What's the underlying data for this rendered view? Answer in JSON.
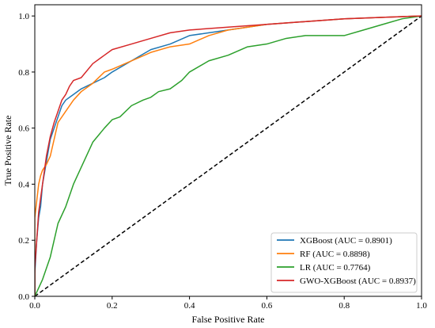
{
  "chart_data": {
    "type": "line",
    "title": "",
    "xlabel": "False Positive Rate",
    "ylabel": "True Positive Rate",
    "xlim": [
      0.0,
      1.0
    ],
    "ylim": [
      0.0,
      1.04
    ],
    "xticks": [
      "0.0",
      "0.2",
      "0.4",
      "0.6",
      "0.8",
      "1.0"
    ],
    "yticks": [
      "0.0",
      "0.2",
      "0.4",
      "0.6",
      "0.8",
      "1.0"
    ],
    "grid": false,
    "legend_position": "lower-right",
    "series": [
      {
        "name": "XGBoost (AUC = 0.8901)",
        "color": "#1f77b4",
        "x": [
          0.0,
          0.0,
          0.005,
          0.01,
          0.015,
          0.02,
          0.03,
          0.04,
          0.05,
          0.06,
          0.07,
          0.08,
          0.09,
          0.1,
          0.12,
          0.15,
          0.18,
          0.2,
          0.25,
          0.3,
          0.35,
          0.4,
          0.45,
          0.5,
          0.6,
          0.7,
          0.8,
          0.9,
          1.0
        ],
        "y": [
          0.0,
          0.08,
          0.2,
          0.28,
          0.32,
          0.4,
          0.48,
          0.56,
          0.6,
          0.64,
          0.68,
          0.7,
          0.71,
          0.72,
          0.74,
          0.76,
          0.78,
          0.8,
          0.84,
          0.88,
          0.9,
          0.93,
          0.94,
          0.95,
          0.97,
          0.98,
          0.99,
          0.995,
          1.0
        ]
      },
      {
        "name": "RF (AUC = 0.8898)",
        "color": "#ff7f0e",
        "x": [
          0.0,
          0.0,
          0.005,
          0.01,
          0.015,
          0.02,
          0.03,
          0.04,
          0.05,
          0.06,
          0.08,
          0.1,
          0.12,
          0.15,
          0.18,
          0.2,
          0.25,
          0.3,
          0.35,
          0.4,
          0.45,
          0.5,
          0.6,
          0.7,
          0.8,
          0.9,
          1.0
        ],
        "y": [
          0.0,
          0.28,
          0.34,
          0.4,
          0.43,
          0.45,
          0.47,
          0.5,
          0.56,
          0.62,
          0.66,
          0.7,
          0.73,
          0.76,
          0.8,
          0.81,
          0.84,
          0.87,
          0.89,
          0.9,
          0.93,
          0.95,
          0.97,
          0.98,
          0.99,
          0.995,
          1.0
        ]
      },
      {
        "name": "LR (AUC = 0.7764)",
        "color": "#2ca02c",
        "x": [
          0.0,
          0.01,
          0.02,
          0.03,
          0.04,
          0.05,
          0.06,
          0.08,
          0.1,
          0.12,
          0.15,
          0.18,
          0.2,
          0.22,
          0.25,
          0.28,
          0.3,
          0.32,
          0.35,
          0.38,
          0.4,
          0.45,
          0.5,
          0.55,
          0.6,
          0.65,
          0.7,
          0.8,
          0.85,
          0.9,
          0.95,
          1.0
        ],
        "y": [
          0.0,
          0.03,
          0.06,
          0.1,
          0.14,
          0.2,
          0.26,
          0.32,
          0.4,
          0.46,
          0.55,
          0.6,
          0.63,
          0.64,
          0.68,
          0.7,
          0.71,
          0.73,
          0.74,
          0.77,
          0.8,
          0.84,
          0.86,
          0.89,
          0.9,
          0.92,
          0.93,
          0.93,
          0.95,
          0.97,
          0.99,
          1.0
        ]
      },
      {
        "name": "GWO-XGBoost (AUC = 0.8937)",
        "color": "#d62728",
        "x": [
          0.0,
          0.0,
          0.005,
          0.01,
          0.015,
          0.02,
          0.03,
          0.04,
          0.05,
          0.06,
          0.07,
          0.08,
          0.09,
          0.1,
          0.12,
          0.15,
          0.18,
          0.2,
          0.25,
          0.3,
          0.35,
          0.4,
          0.5,
          0.6,
          0.7,
          0.8,
          0.9,
          1.0
        ],
        "y": [
          0.0,
          0.1,
          0.2,
          0.3,
          0.35,
          0.4,
          0.5,
          0.57,
          0.62,
          0.66,
          0.7,
          0.72,
          0.75,
          0.77,
          0.78,
          0.83,
          0.86,
          0.88,
          0.9,
          0.92,
          0.94,
          0.95,
          0.96,
          0.97,
          0.98,
          0.99,
          0.995,
          1.0
        ]
      }
    ],
    "reference_line": {
      "style": "dashed",
      "color": "#000000",
      "x": [
        0.0,
        1.0
      ],
      "y": [
        0.0,
        1.0
      ]
    }
  }
}
